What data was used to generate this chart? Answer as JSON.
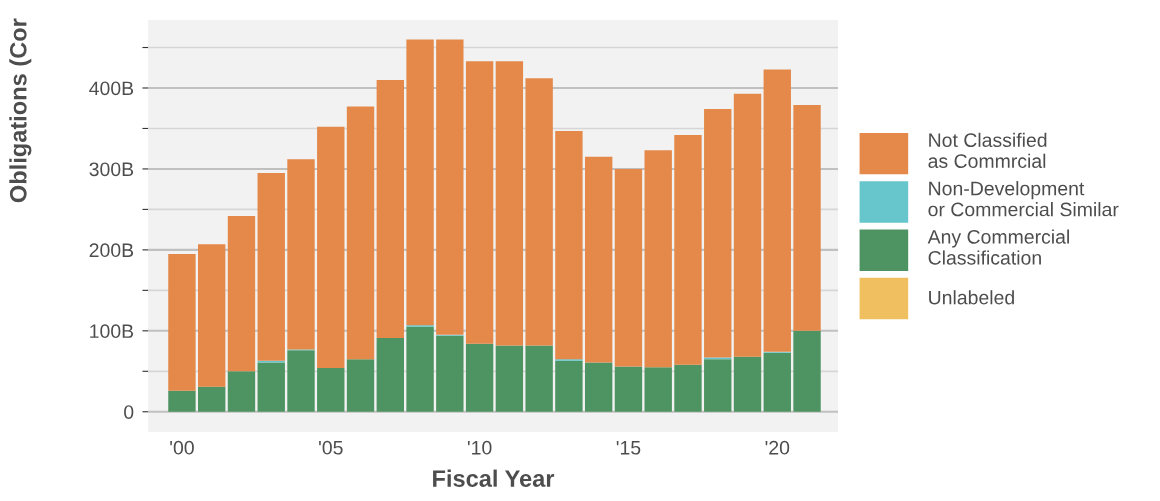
{
  "chart_data": {
    "type": "bar",
    "stacked": true,
    "xlabel": "Fiscal Year",
    "ylabel": "Obligations (Cor",
    "x": [
      2000,
      2001,
      2002,
      2003,
      2004,
      2005,
      2006,
      2007,
      2008,
      2009,
      2010,
      2011,
      2012,
      2013,
      2014,
      2015,
      2016,
      2017,
      2018,
      2019,
      2020,
      2021
    ],
    "series": [
      {
        "name": "Unlabeled",
        "color": "#f0c060",
        "values": [
          0,
          0,
          0,
          0,
          0,
          0,
          0,
          0,
          0,
          0,
          0,
          0,
          0,
          0,
          0,
          0,
          0,
          0,
          0,
          0,
          0,
          0
        ]
      },
      {
        "name": "Any Commercial\nClassification",
        "color": "#4e9462",
        "values": [
          26,
          31,
          50,
          61,
          76,
          54,
          65,
          91,
          105,
          94,
          84,
          82,
          82,
          63,
          61,
          56,
          55,
          58,
          65,
          68,
          73,
          100
        ]
      },
      {
        "name": "Non-Development\nor Commercial Similar",
        "color": "#66c6cc",
        "values": [
          0,
          0,
          0,
          2,
          1,
          0,
          0,
          0,
          2,
          1,
          0,
          0,
          0,
          2,
          0,
          0,
          0,
          0,
          2,
          0,
          1,
          0
        ]
      },
      {
        "name": "Not Classified\nas Commrcial",
        "color": "#e4894a",
        "values": [
          169,
          176,
          192,
          232,
          235,
          298,
          312,
          319,
          353,
          365,
          349,
          351,
          330,
          282,
          254,
          244,
          268,
          284,
          307,
          325,
          349,
          279
        ]
      }
    ],
    "xlim": [
      1998.86,
      2022.04
    ],
    "xticks": [
      {
        "value": 2000,
        "label": "'00"
      },
      {
        "value": 2005,
        "label": "'05"
      },
      {
        "value": 2010,
        "label": "'10"
      },
      {
        "value": 2015,
        "label": "'15"
      },
      {
        "value": 2020,
        "label": "'20"
      }
    ],
    "ylim": [
      -25,
      484
    ],
    "yticks": [
      {
        "value": 0,
        "label": "0"
      },
      {
        "value": 50,
        "label": null
      },
      {
        "value": 100,
        "label": "100B"
      },
      {
        "value": 150,
        "label": null
      },
      {
        "value": 200,
        "label": "200B"
      },
      {
        "value": 250,
        "label": null
      },
      {
        "value": 300,
        "label": "300B"
      },
      {
        "value": 350,
        "label": null
      },
      {
        "value": 400,
        "label": "400B"
      },
      {
        "value": 450,
        "label": null
      }
    ],
    "grid": "y",
    "legend": "right"
  }
}
